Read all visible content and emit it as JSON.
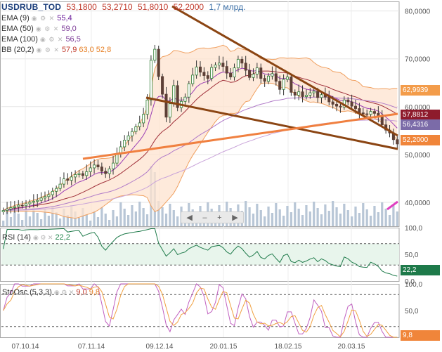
{
  "header": {
    "symbol": "USDRUB_TOD",
    "ohlc": [
      "53,1800",
      "53,2710",
      "51,8010",
      "52,2000"
    ],
    "volume": "1,7 млрд."
  },
  "indicators": [
    {
      "name": "EMA (9)",
      "value": "55,4",
      "color": "#6a1b9a"
    },
    {
      "name": "EMA (50)",
      "value": "59,0",
      "color": "#7d3c98"
    },
    {
      "name": "EMA (100)",
      "value": "56,5",
      "color": "#7d3c98"
    },
    {
      "name": "BB (20,2)",
      "value": "57,9",
      "value2": "63,0",
      "value3": "52,8",
      "color": "#e67e22"
    }
  ],
  "price_tags": [
    {
      "label": "62,9939",
      "value": 62.99,
      "color": "#f39c4a"
    },
    {
      "label": "57,8812",
      "value": 57.88,
      "color": "#8e1b2c"
    },
    {
      "label": "56,4316",
      "value": 56.43,
      "color": "#7b6ba8"
    },
    {
      "label": "52,2000",
      "value": 52.2,
      "color": "#f0853a"
    }
  ],
  "rsi": {
    "label": "RSI (14)",
    "value": "22,2",
    "tag": "22,2",
    "axis": [
      "100,0",
      "50,0",
      "0,0"
    ]
  },
  "stoch": {
    "label": "StoOsc (5,3,3)",
    "k": "9,0",
    "d": "9,8",
    "tag": "9,8",
    "axis": [
      "100,0",
      "50,0"
    ]
  },
  "zoom": {
    "left": "◀",
    "minus": "–",
    "plus": "+",
    "right": "▶"
  },
  "chart_data": {
    "type": "candlestick",
    "y_axis": {
      "labels": [
        "80,0000",
        "70,0000",
        "60,0000",
        "50,0000",
        "40,0000"
      ],
      "min": 35,
      "max": 82
    },
    "x_axis": {
      "labels": [
        "07.10.14",
        "07.11.14",
        "09.12.14",
        "20.01.15",
        "18.02.15",
        "20.03.15"
      ]
    },
    "close": [
      38.3,
      38.6,
      38.9,
      39.1,
      39.4,
      39.3,
      39.7,
      40.0,
      40.2,
      40.4,
      40.9,
      41.2,
      41.6,
      42.3,
      42.9,
      43.8,
      44.9,
      44.6,
      45.3,
      45.8,
      46.0,
      45.6,
      46.4,
      47.2,
      47.8,
      47.4,
      46.5,
      46.0,
      47.0,
      48.2,
      50.1,
      51.6,
      53.0,
      53.9,
      54.8,
      55.8,
      56.6,
      58.4,
      61.4,
      69.7,
      72.0,
      66.3,
      62.6,
      57.8,
      60.6,
      64.4,
      59.8,
      61.1,
      62.0,
      64.8,
      66.6,
      68.3,
      67.2,
      66.5,
      65.9,
      68.2,
      68.7,
      69.1,
      68.4,
      67.0,
      66.2,
      68.1,
      69.9,
      69.1,
      67.6,
      66.1,
      66.8,
      68.1,
      65.9,
      65.3,
      66.4,
      66.9,
      65.3,
      63.6,
      65.7,
      66.2,
      63.0,
      62.4,
      63.1,
      62.1,
      62.4,
      62.9,
      63.2,
      61.9,
      62.5,
      62.0,
      61.0,
      60.5,
      60.1,
      59.9,
      61.4,
      61.0,
      60.1,
      59.6,
      58.7,
      58.5,
      58.4,
      59.0,
      58.6,
      57.9,
      56.2,
      55.1,
      54.5,
      53.1,
      52.2
    ]
  }
}
